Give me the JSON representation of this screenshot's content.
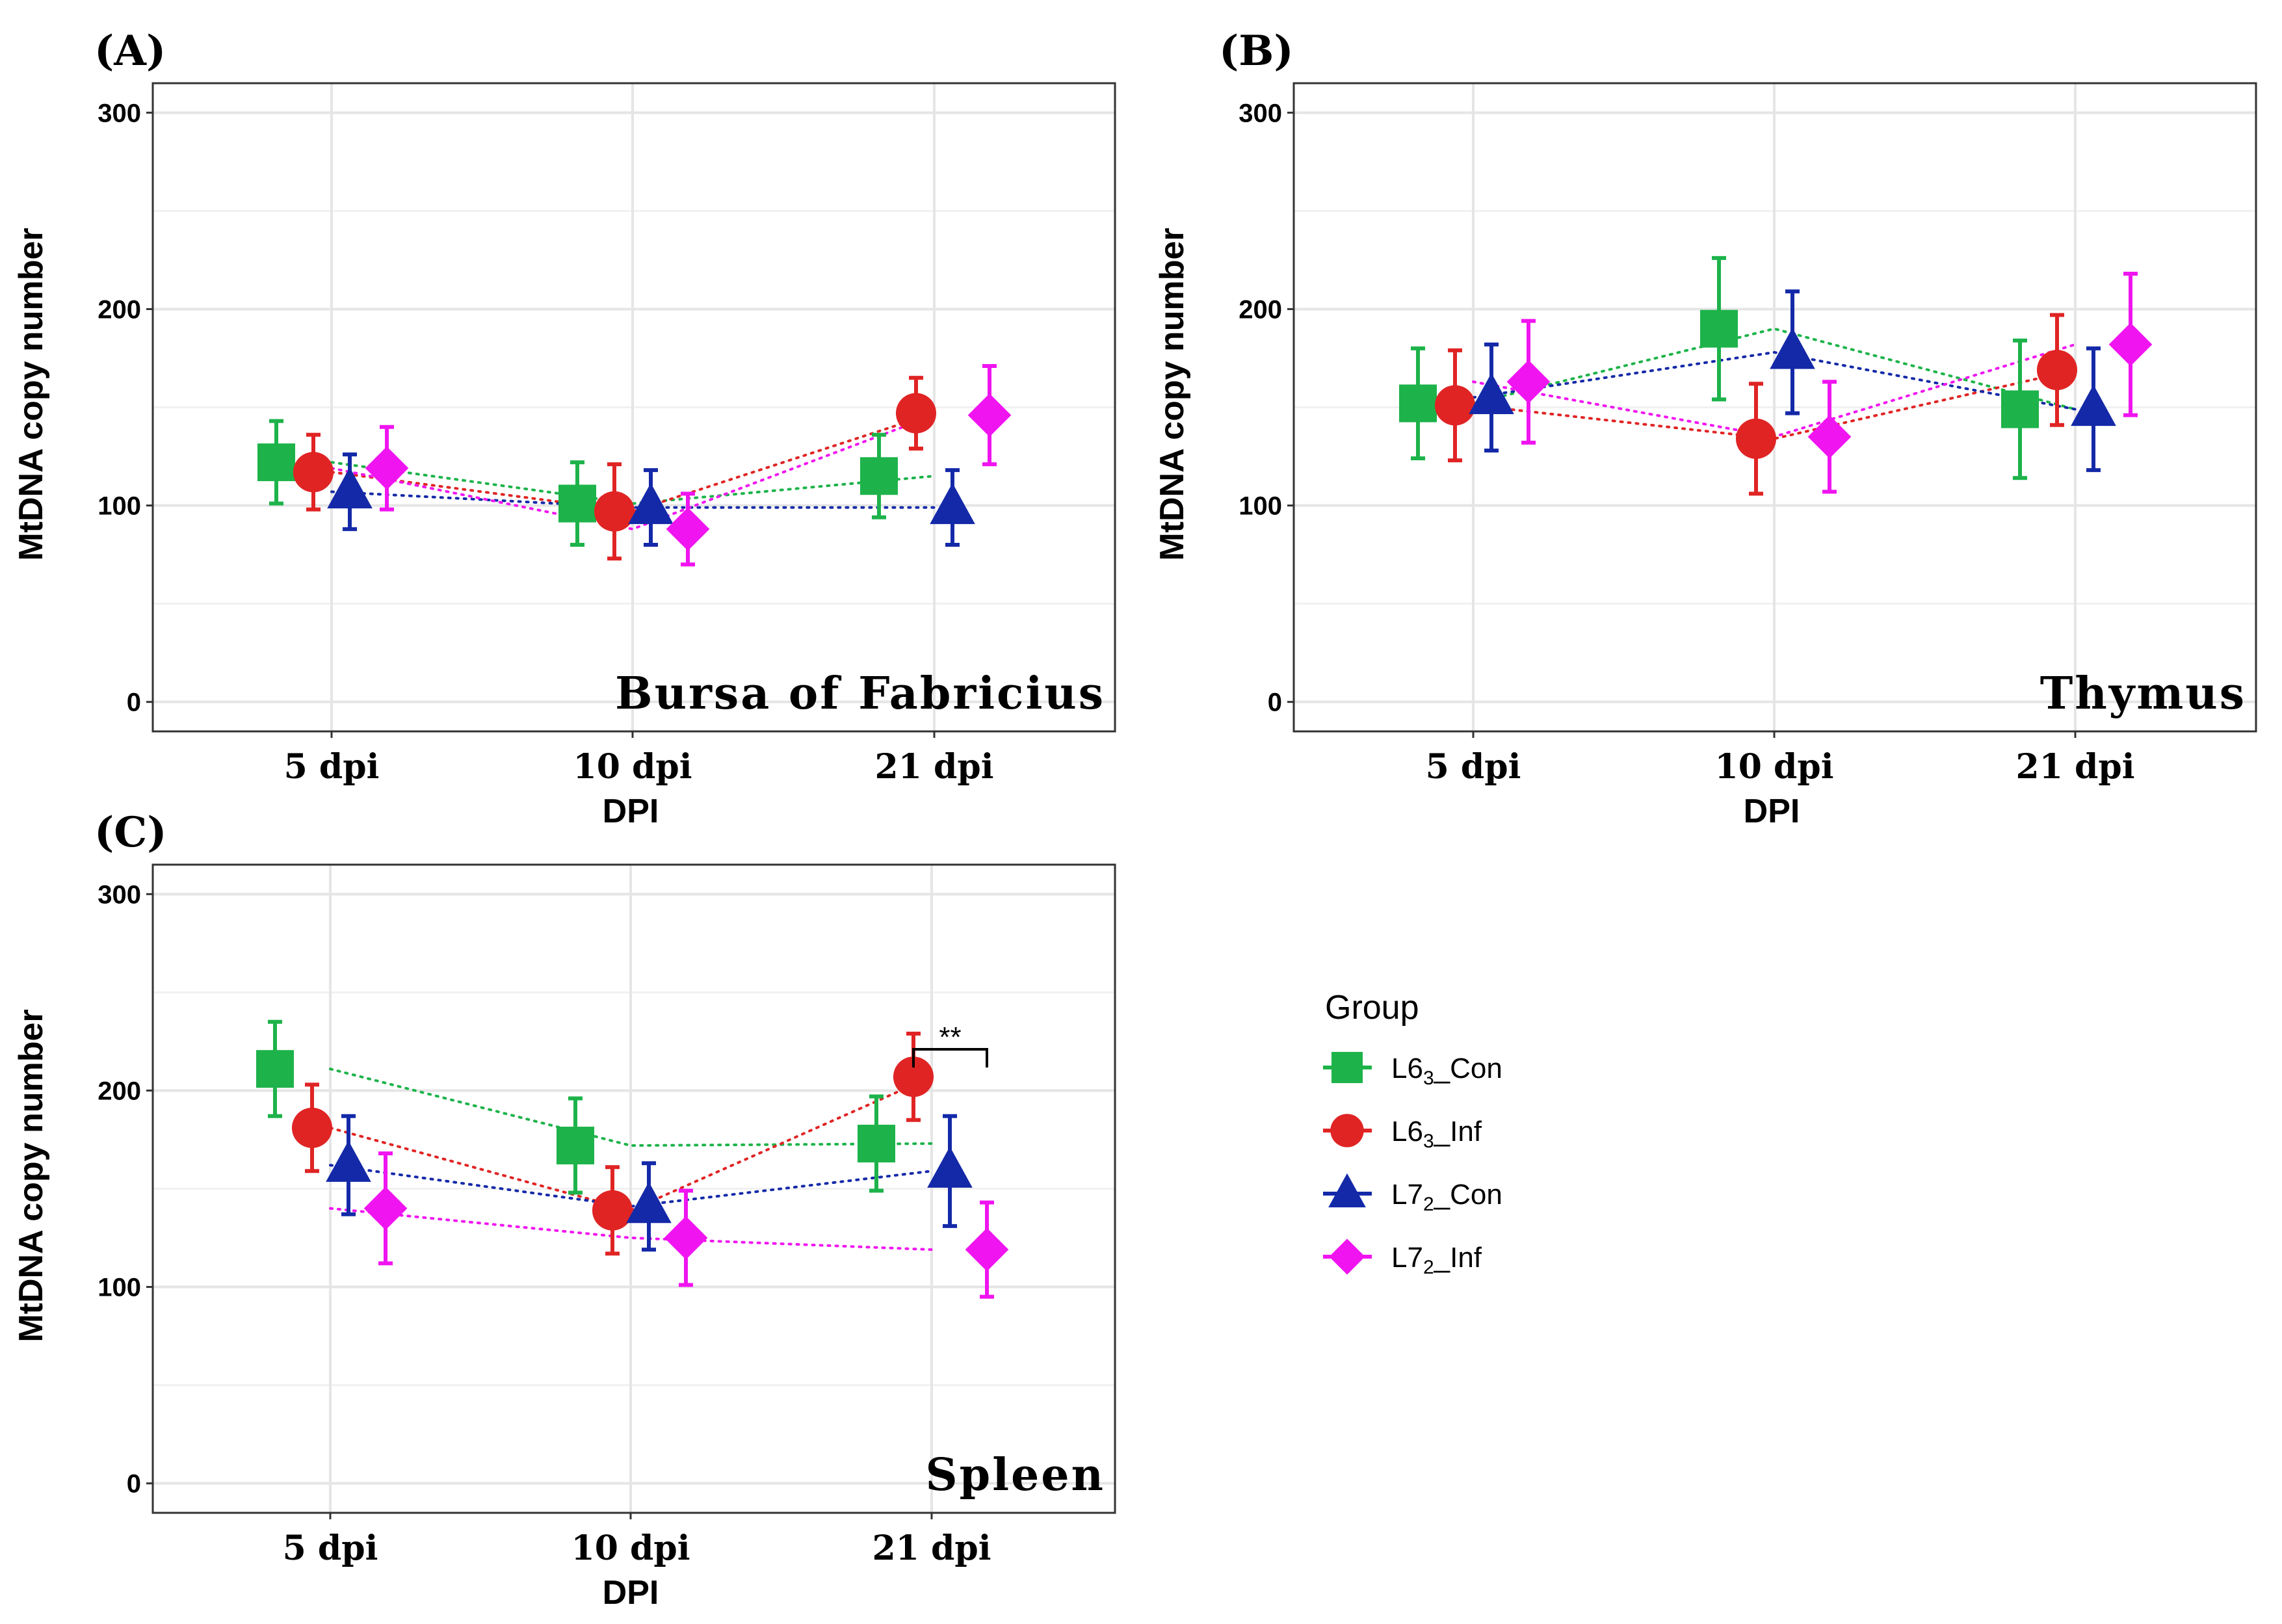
{
  "colors": {
    "L6_Con": "#1db34a",
    "L6_Inf": "#e02424",
    "L7_Con": "#1429a8",
    "L7_Inf": "#f014f0"
  },
  "legend": {
    "title": "Group",
    "items": [
      {
        "key": "L6_Con",
        "base": "L6",
        "sub": "3",
        "suffix": "_Con",
        "shape": "square"
      },
      {
        "key": "L6_Inf",
        "base": "L6",
        "sub": "3",
        "suffix": "_Inf",
        "shape": "circle"
      },
      {
        "key": "L7_Con",
        "base": "L7",
        "sub": "2",
        "suffix": "_Con",
        "shape": "triangle"
      },
      {
        "key": "L7_Inf",
        "base": "L7",
        "sub": "2",
        "suffix": "_Inf",
        "shape": "diamond"
      }
    ]
  },
  "chart_data": [
    {
      "type": "scatter",
      "panel": "(A)",
      "title": "Bursa of Fabricius",
      "xlabel": "DPI",
      "ylabel": "MtDNA copy number",
      "categories": [
        "5 dpi",
        "10 dpi",
        "21 dpi"
      ],
      "ylim": [
        -15,
        315
      ],
      "yticks": [
        0,
        100,
        200,
        300
      ],
      "series": [
        {
          "key": "L6_Con",
          "values": [
            122,
            101,
            115
          ],
          "err": [
            21,
            21,
            21
          ]
        },
        {
          "key": "L6_Inf",
          "values": [
            117,
            97,
            147
          ],
          "err": [
            19,
            24,
            18
          ]
        },
        {
          "key": "L7_Con",
          "values": [
            107,
            99,
            99
          ],
          "err": [
            19,
            19,
            19
          ]
        },
        {
          "key": "L7_Inf",
          "values": [
            119,
            88,
            146
          ],
          "err": [
            21,
            18,
            25
          ]
        }
      ]
    },
    {
      "type": "scatter",
      "panel": "(B)",
      "title": "Thymus",
      "xlabel": "DPI",
      "ylabel": "MtDNA copy number",
      "categories": [
        "5 dpi",
        "10 dpi",
        "21 dpi"
      ],
      "ylim": [
        -15,
        315
      ],
      "yticks": [
        0,
        100,
        200,
        300
      ],
      "series": [
        {
          "key": "L6_Con",
          "values": [
            152,
            190,
            149
          ],
          "err": [
            28,
            36,
            35
          ]
        },
        {
          "key": "L6_Inf",
          "values": [
            151,
            134,
            169
          ],
          "err": [
            28,
            28,
            28
          ]
        },
        {
          "key": "L7_Con",
          "values": [
            155,
            178,
            149
          ],
          "err": [
            27,
            31,
            31
          ]
        },
        {
          "key": "L7_Inf",
          "values": [
            163,
            135,
            182
          ],
          "err": [
            31,
            28,
            36
          ]
        }
      ]
    },
    {
      "type": "scatter",
      "panel": "(C)",
      "title": "Spleen",
      "xlabel": "DPI",
      "ylabel": "MtDNA copy number",
      "categories": [
        "5 dpi",
        "10 dpi",
        "21 dpi"
      ],
      "ylim": [
        -15,
        315
      ],
      "yticks": [
        0,
        100,
        200,
        300
      ],
      "annotation": {
        "text": "**",
        "category": "21 dpi",
        "y": 221
      },
      "series": [
        {
          "key": "L6_Con",
          "values": [
            211,
            172,
            173
          ],
          "err": [
            24,
            24,
            24
          ]
        },
        {
          "key": "L6_Inf",
          "values": [
            181,
            139,
            207
          ],
          "err": [
            22,
            22,
            22
          ]
        },
        {
          "key": "L7_Con",
          "values": [
            162,
            141,
            159
          ],
          "err": [
            25,
            22,
            28
          ]
        },
        {
          "key": "L7_Inf",
          "values": [
            140,
            125,
            119
          ],
          "err": [
            28,
            24,
            24
          ]
        }
      ]
    }
  ]
}
